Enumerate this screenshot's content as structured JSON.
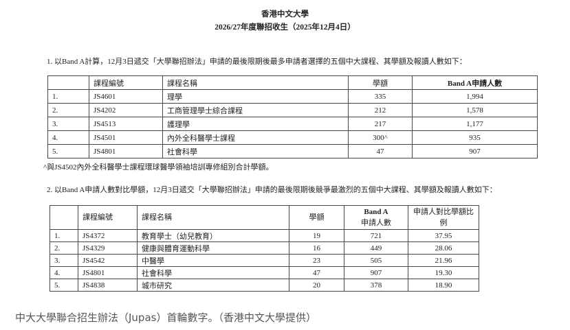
{
  "header": {
    "institution": "香港中文大學",
    "subtitle": "2026/27年度聯招收生（2025年12月4日）"
  },
  "section1": {
    "intro": "1.  以Band A計算，12月3日遞交「大學聯招辦法」申請的最後限期後最多申請者選擇的五個中大課程、其學額及報讀人數如下：",
    "columns": [
      "",
      "課程編號",
      "課程名稱",
      "學額",
      "Band A申請人數"
    ],
    "rows": [
      [
        "1.",
        "JS4601",
        "理學",
        "335",
        "1,994"
      ],
      [
        "2.",
        "JS4202",
        "工商管理學士綜合課程",
        "212",
        "1,578"
      ],
      [
        "3.",
        "JS4513",
        "護理學",
        "217",
        "1,177"
      ],
      [
        "4.",
        "JS4501",
        "內外全科醫學士課程",
        "300^",
        "935"
      ],
      [
        "5.",
        "JS4801",
        "社會科學",
        "47",
        "907"
      ]
    ],
    "footnote": "^與JS4502內外全科醫學士課程環球醫學領袖培訓專修組別合計學額。"
  },
  "section2": {
    "intro": "2.  以Band A申請人數對比學額，12月3日遞交「大學聯招辦法」申請的最後限期後競爭最激烈的五個中大課程、其學額及報讀人數如下：",
    "columns": [
      "",
      "課程編號",
      "課程名稱",
      "學額",
      "Band A",
      "申請人數",
      "申請人對比學額比",
      "例"
    ],
    "rows": [
      [
        "1.",
        "JS4372",
        "教育學士（幼兒教育）",
        "19",
        "721",
        "37.95"
      ],
      [
        "2.",
        "JS4329",
        "健康與體育運動科學",
        "16",
        "449",
        "28.06"
      ],
      [
        "3.",
        "JS4542",
        "中醫學",
        "23",
        "505",
        "21.96"
      ],
      [
        "4.",
        "JS4801",
        "社會科學",
        "47",
        "907",
        "19.30"
      ],
      [
        "5.",
        "JS4838",
        "城市研究",
        "20",
        "378",
        "18.90"
      ]
    ]
  },
  "caption": "中大大學聯合招生辦法（Jupas）首輪數字。（香港中文大學提供）"
}
